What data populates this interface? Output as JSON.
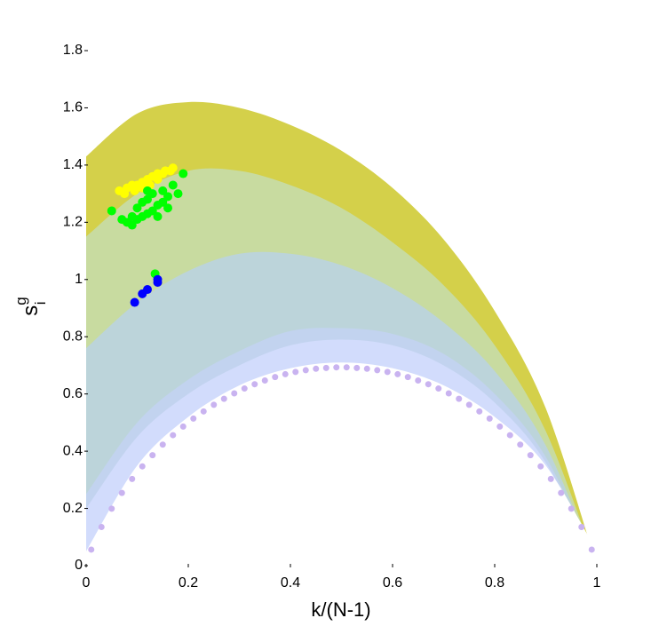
{
  "chart_data": {
    "type": "scatter",
    "xlabel": "k/(N-1)",
    "ylabel": "s",
    "ylabel_sup": "g",
    "ylabel_sub": "i",
    "xlim": [
      0,
      1
    ],
    "ylim": [
      0,
      1.8
    ],
    "xticks": [
      0,
      0.2,
      0.4,
      0.6,
      0.8,
      1
    ],
    "yticks": [
      0,
      0.2,
      0.4,
      0.6,
      0.8,
      1,
      1.2,
      1.4,
      1.6,
      1.8
    ],
    "grid": false,
    "area_x": [
      0,
      0.1,
      0.2,
      0.3,
      0.4,
      0.5,
      0.6,
      0.7,
      0.8,
      0.9,
      1
    ],
    "areas": [
      {
        "color": "#d4d04a",
        "values": [
          1.43,
          1.58,
          1.62,
          1.6,
          1.54,
          1.45,
          1.32,
          1.14,
          0.89,
          0.55,
          0
        ]
      },
      {
        "color": "#c8dba0",
        "values": [
          1.15,
          1.3,
          1.38,
          1.38,
          1.33,
          1.25,
          1.13,
          0.98,
          0.77,
          0.47,
          0
        ]
      },
      {
        "color": "#bcd4da",
        "values": [
          0.76,
          0.92,
          1.03,
          1.09,
          1.09,
          1.05,
          0.97,
          0.85,
          0.68,
          0.42,
          0
        ]
      },
      {
        "color": "#c2d3ef",
        "values": [
          0.25,
          0.5,
          0.65,
          0.75,
          0.82,
          0.83,
          0.81,
          0.74,
          0.6,
          0.38,
          0
        ]
      },
      {
        "color": "#d2dcfc",
        "values": [
          0.2,
          0.45,
          0.6,
          0.7,
          0.77,
          0.79,
          0.77,
          0.7,
          0.57,
          0.36,
          0
        ]
      },
      {
        "color": "#ffffff",
        "values": [
          0.05,
          0.35,
          0.52,
          0.63,
          0.69,
          0.71,
          0.69,
          0.63,
          0.52,
          0.35,
          0.05
        ]
      }
    ],
    "series": [
      {
        "color": "#c9b3f0",
        "radius": 3.5,
        "x": [
          0.01,
          0.03,
          0.05,
          0.07,
          0.09,
          0.11,
          0.13,
          0.15,
          0.17,
          0.19,
          0.21,
          0.23,
          0.25,
          0.27,
          0.29,
          0.31,
          0.33,
          0.35,
          0.37,
          0.39,
          0.41,
          0.43,
          0.45,
          0.47,
          0.49,
          0.51,
          0.53,
          0.55,
          0.57,
          0.59,
          0.61,
          0.63,
          0.65,
          0.67,
          0.69,
          0.71,
          0.73,
          0.75,
          0.77,
          0.79,
          0.81,
          0.83,
          0.85,
          0.87,
          0.89,
          0.91,
          0.93,
          0.95,
          0.97,
          0.99
        ],
        "values": [
          0.056,
          0.135,
          0.199,
          0.254,
          0.303,
          0.347,
          0.386,
          0.423,
          0.456,
          0.486,
          0.514,
          0.539,
          0.562,
          0.583,
          0.602,
          0.619,
          0.634,
          0.647,
          0.659,
          0.669,
          0.677,
          0.683,
          0.688,
          0.691,
          0.693,
          0.693,
          0.691,
          0.688,
          0.683,
          0.677,
          0.669,
          0.659,
          0.647,
          0.634,
          0.619,
          0.602,
          0.583,
          0.562,
          0.539,
          0.514,
          0.486,
          0.456,
          0.423,
          0.386,
          0.347,
          0.303,
          0.254,
          0.199,
          0.135,
          0.056
        ]
      },
      {
        "color": "#ffff00",
        "radius": 5,
        "x": [
          0.065,
          0.075,
          0.08,
          0.09,
          0.095,
          0.1,
          0.11,
          0.12,
          0.125,
          0.13,
          0.14,
          0.15,
          0.155,
          0.165,
          0.17,
          0.14,
          0.11
        ],
        "values": [
          1.31,
          1.3,
          1.32,
          1.33,
          1.31,
          1.33,
          1.34,
          1.35,
          1.33,
          1.36,
          1.37,
          1.37,
          1.38,
          1.38,
          1.39,
          1.35,
          1.32
        ]
      },
      {
        "color": "#00ff00",
        "radius": 5,
        "x": [
          0.05,
          0.07,
          0.08,
          0.09,
          0.09,
          0.1,
          0.1,
          0.11,
          0.11,
          0.12,
          0.12,
          0.13,
          0.13,
          0.14,
          0.14,
          0.15,
          0.15,
          0.16,
          0.16,
          0.17,
          0.18,
          0.19,
          0.12,
          0.135
        ],
        "values": [
          1.24,
          1.21,
          1.2,
          1.22,
          1.19,
          1.21,
          1.25,
          1.22,
          1.27,
          1.23,
          1.28,
          1.24,
          1.3,
          1.26,
          1.22,
          1.27,
          1.31,
          1.29,
          1.25,
          1.33,
          1.3,
          1.37,
          1.31,
          1.02
        ]
      },
      {
        "color": "#0000ff",
        "radius": 5,
        "x": [
          0.095,
          0.11,
          0.12,
          0.14,
          0.14
        ],
        "values": [
          0.92,
          0.95,
          0.965,
          0.99,
          1.0
        ]
      }
    ]
  }
}
